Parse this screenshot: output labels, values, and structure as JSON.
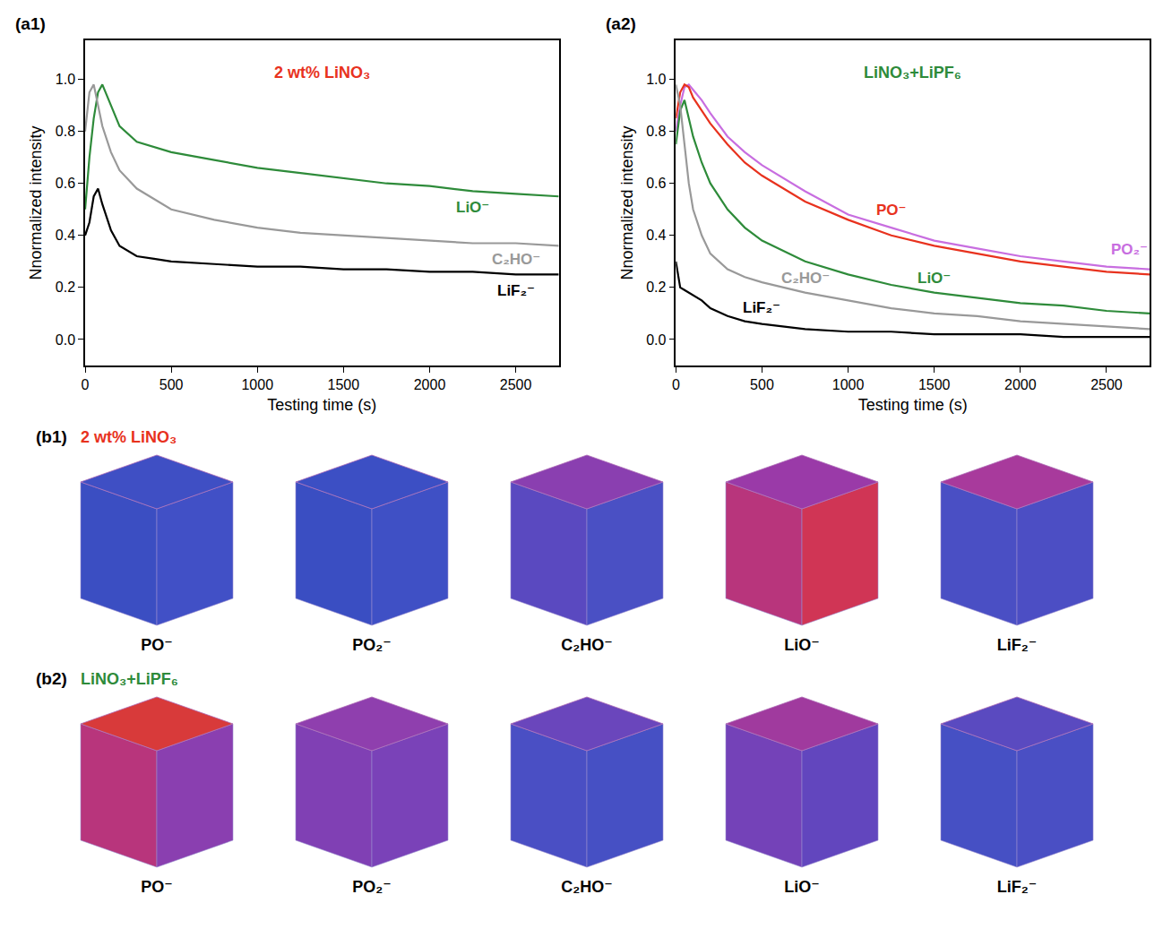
{
  "chart_data": [
    {
      "panel": "(a1)",
      "type": "line",
      "annotation": {
        "text": "2 wt% LiNO₃",
        "color": "#e8321e"
      },
      "xlabel": "Testing time (s)",
      "ylabel": "Nnormalized intensity",
      "x": [
        0,
        25,
        50,
        75,
        100,
        150,
        200,
        300,
        400,
        500,
        750,
        1000,
        1250,
        1500,
        1750,
        2000,
        2250,
        2500,
        2750
      ],
      "series": [
        {
          "name": "LiO⁻",
          "color": "#2e8b3a",
          "values": [
            0.5,
            0.7,
            0.85,
            0.95,
            0.98,
            0.9,
            0.82,
            0.76,
            0.74,
            0.72,
            0.69,
            0.66,
            0.64,
            0.62,
            0.6,
            0.59,
            0.57,
            0.56,
            0.55
          ]
        },
        {
          "name": "C₂HO⁻",
          "color": "#999999",
          "values": [
            0.8,
            0.95,
            0.98,
            0.9,
            0.82,
            0.72,
            0.65,
            0.58,
            0.54,
            0.5,
            0.46,
            0.43,
            0.41,
            0.4,
            0.39,
            0.38,
            0.37,
            0.37,
            0.36
          ]
        },
        {
          "name": "LiF₂⁻",
          "color": "#000000",
          "values": [
            0.4,
            0.45,
            0.55,
            0.58,
            0.52,
            0.42,
            0.36,
            0.32,
            0.31,
            0.3,
            0.29,
            0.28,
            0.28,
            0.27,
            0.27,
            0.26,
            0.26,
            0.25,
            0.25
          ]
        }
      ],
      "xlim": [
        0,
        2750
      ],
      "xticks": [
        0,
        500,
        1000,
        1500,
        2000,
        2500
      ],
      "ylim": [
        -0.1,
        1.15
      ],
      "yticks": [
        {
          "value": 0,
          "label": "0.0"
        },
        0.2,
        0.4,
        0.6,
        0.8,
        {
          "value": 1,
          "label": "1.0"
        }
      ]
    },
    {
      "panel": "(a2)",
      "type": "line",
      "annotation": {
        "text": "LiNO₃+LiPF₆",
        "color": "#2e8b3a"
      },
      "xlabel": "Testing time (s)",
      "ylabel": "Nnormalized intensity",
      "x": [
        0,
        25,
        50,
        75,
        100,
        150,
        200,
        300,
        400,
        500,
        750,
        1000,
        1250,
        1500,
        1750,
        2000,
        2250,
        2500,
        2750
      ],
      "series": [
        {
          "name": "PO₂⁻",
          "color": "#c86ee0",
          "values": [
            0.8,
            0.9,
            0.97,
            0.98,
            0.96,
            0.92,
            0.87,
            0.78,
            0.72,
            0.67,
            0.57,
            0.48,
            0.43,
            0.38,
            0.35,
            0.32,
            0.3,
            0.28,
            0.27
          ]
        },
        {
          "name": "PO⁻",
          "color": "#e8321e",
          "values": [
            0.85,
            0.95,
            0.98,
            0.97,
            0.93,
            0.88,
            0.83,
            0.75,
            0.68,
            0.63,
            0.53,
            0.46,
            0.4,
            0.36,
            0.33,
            0.3,
            0.28,
            0.26,
            0.25
          ]
        },
        {
          "name": "LiO⁻",
          "color": "#2e8b3a",
          "values": [
            0.75,
            0.88,
            0.92,
            0.85,
            0.78,
            0.68,
            0.6,
            0.5,
            0.43,
            0.38,
            0.3,
            0.25,
            0.21,
            0.18,
            0.16,
            0.14,
            0.13,
            0.11,
            0.1
          ]
        },
        {
          "name": "C₂HO⁻",
          "color": "#999999",
          "values": [
            0.98,
            0.9,
            0.75,
            0.6,
            0.5,
            0.4,
            0.33,
            0.27,
            0.24,
            0.22,
            0.18,
            0.15,
            0.12,
            0.1,
            0.09,
            0.07,
            0.06,
            0.05,
            0.04
          ]
        },
        {
          "name": "LiF₂⁻",
          "color": "#000000",
          "values": [
            0.3,
            0.2,
            0.19,
            0.18,
            0.17,
            0.15,
            0.12,
            0.09,
            0.07,
            0.06,
            0.04,
            0.03,
            0.03,
            0.02,
            0.02,
            0.02,
            0.01,
            0.01,
            0.01
          ]
        }
      ],
      "xlim": [
        0,
        2750
      ],
      "xticks": [
        0,
        500,
        1000,
        1500,
        2000,
        2500
      ],
      "ylim": [
        -0.1,
        1.15
      ],
      "yticks": [
        {
          "value": 0,
          "label": "0.0"
        },
        0.2,
        0.4,
        0.6,
        0.8,
        {
          "value": 1,
          "label": "1.0"
        }
      ]
    }
  ],
  "cubes": [
    {
      "panel": "(b1)",
      "annotation": {
        "text": "2 wt% LiNO₃",
        "color": "#e8321e"
      },
      "items": [
        {
          "label": "PO⁻",
          "colors": [
            "#3f4fc4",
            "#3b4ec2",
            "#4150c6"
          ]
        },
        {
          "label": "PO₂⁻",
          "colors": [
            "#3c4fc4",
            "#3a4ec2",
            "#3f50c5"
          ]
        },
        {
          "label": "C₂HO⁻",
          "colors": [
            "#8a3fb0",
            "#5a49c0",
            "#4a50c4"
          ]
        },
        {
          "label": "LiO⁻",
          "colors": [
            "#9a3aa8",
            "#b8357c",
            "#d03555"
          ]
        },
        {
          "label": "LiF₂⁻",
          "colors": [
            "#a83a9c",
            "#4a4fc4",
            "#4c4ec4"
          ]
        }
      ]
    },
    {
      "panel": "(b2)",
      "annotation": {
        "text": "LiNO₃+LiPF₆",
        "color": "#2e8b3a"
      },
      "items": [
        {
          "label": "PO⁻",
          "colors": [
            "#d83a3a",
            "#b8357c",
            "#8a3fb0"
          ]
        },
        {
          "label": "PO₂⁻",
          "colors": [
            "#8f3fae",
            "#8040b4",
            "#7a42b8"
          ]
        },
        {
          "label": "C₂HO⁻",
          "colors": [
            "#6a46bc",
            "#4a4fc4",
            "#4650c4"
          ]
        },
        {
          "label": "LiO⁻",
          "colors": [
            "#a03a9e",
            "#7442b8",
            "#6246be"
          ]
        },
        {
          "label": "LiF₂⁻",
          "colors": [
            "#5a4ac0",
            "#4650c4",
            "#4a4fc4"
          ]
        }
      ]
    }
  ]
}
